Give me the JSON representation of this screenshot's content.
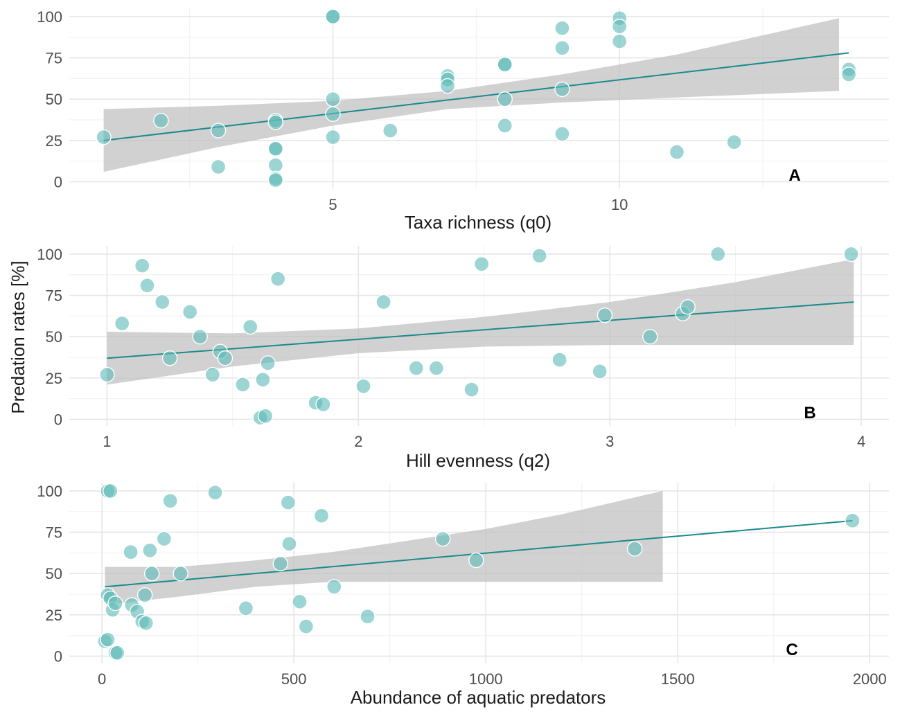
{
  "chart_data": [
    {
      "type": "scatter",
      "panel_label": "A",
      "xlabel": "Taxa richness (q0)",
      "ylabel": "Predation rates [%]",
      "xlim": [
        0.4,
        14.7
      ],
      "ylim": [
        -4,
        105
      ],
      "x_ticks": [
        5,
        10
      ],
      "y_ticks": [
        0,
        25,
        50,
        75,
        100
      ],
      "x_ticks_label": [
        "5",
        "10"
      ],
      "y_ticks_label": [
        "0",
        "25",
        "50",
        "75",
        "100"
      ],
      "colors": {
        "point": "#5fbcb8",
        "line": "#1a8a8a",
        "band": "#bdbdbd"
      },
      "points": [
        {
          "x": 1,
          "y": 27
        },
        {
          "x": 2,
          "y": 37
        },
        {
          "x": 3,
          "y": 31
        },
        {
          "x": 3,
          "y": 9
        },
        {
          "x": 4,
          "y": 37
        },
        {
          "x": 4,
          "y": 36
        },
        {
          "x": 4,
          "y": 20
        },
        {
          "x": 4,
          "y": 20
        },
        {
          "x": 4,
          "y": 10
        },
        {
          "x": 4,
          "y": 2
        },
        {
          "x": 4,
          "y": 1
        },
        {
          "x": 5,
          "y": 100
        },
        {
          "x": 5,
          "y": 100
        },
        {
          "x": 5,
          "y": 50
        },
        {
          "x": 5,
          "y": 41
        },
        {
          "x": 5,
          "y": 27
        },
        {
          "x": 6,
          "y": 31
        },
        {
          "x": 7,
          "y": 64
        },
        {
          "x": 7,
          "y": 62
        },
        {
          "x": 7,
          "y": 58
        },
        {
          "x": 8,
          "y": 71
        },
        {
          "x": 8,
          "y": 71
        },
        {
          "x": 8,
          "y": 50
        },
        {
          "x": 8,
          "y": 34
        },
        {
          "x": 9,
          "y": 93
        },
        {
          "x": 9,
          "y": 81
        },
        {
          "x": 9,
          "y": 56
        },
        {
          "x": 9,
          "y": 29
        },
        {
          "x": 10,
          "y": 99
        },
        {
          "x": 10,
          "y": 94
        },
        {
          "x": 10,
          "y": 85
        },
        {
          "x": 11,
          "y": 18
        },
        {
          "x": 12,
          "y": 24
        },
        {
          "x": 14,
          "y": 68
        },
        {
          "x": 14,
          "y": 65
        }
      ],
      "fit": {
        "x": [
          1,
          14
        ],
        "y": [
          25,
          78
        ]
      },
      "ci_band": {
        "x": [
          1,
          3,
          5,
          7,
          9,
          11,
          13.83
        ],
        "upper": [
          44,
          46,
          49,
          55,
          65,
          77,
          99
        ],
        "lower": [
          6,
          21,
          34,
          44,
          48,
          51,
          55
        ]
      }
    },
    {
      "type": "scatter",
      "panel_label": "B",
      "xlabel": "Hill evenness (q2)",
      "ylabel": "Predation rates [%]",
      "xlim": [
        0.85,
        4.11
      ],
      "ylim": [
        -4,
        105
      ],
      "x_ticks": [
        1,
        2,
        3,
        4
      ],
      "y_ticks": [
        0,
        25,
        50,
        75,
        100
      ],
      "x_ticks_label": [
        "1",
        "2",
        "3",
        "4"
      ],
      "y_ticks_label": [
        "0",
        "25",
        "50",
        "75",
        "100"
      ],
      "colors": {
        "point": "#5fbcb8",
        "line": "#1a8a8a",
        "band": "#bdbdbd"
      },
      "points": [
        {
          "x": 1.0,
          "y": 27
        },
        {
          "x": 1.06,
          "y": 58
        },
        {
          "x": 1.14,
          "y": 93
        },
        {
          "x": 1.16,
          "y": 81
        },
        {
          "x": 1.22,
          "y": 71
        },
        {
          "x": 1.25,
          "y": 37
        },
        {
          "x": 1.33,
          "y": 65
        },
        {
          "x": 1.37,
          "y": 50
        },
        {
          "x": 1.42,
          "y": 27
        },
        {
          "x": 1.45,
          "y": 41
        },
        {
          "x": 1.47,
          "y": 37
        },
        {
          "x": 1.54,
          "y": 21
        },
        {
          "x": 1.57,
          "y": 56
        },
        {
          "x": 1.61,
          "y": 1
        },
        {
          "x": 1.62,
          "y": 24
        },
        {
          "x": 1.63,
          "y": 2
        },
        {
          "x": 1.64,
          "y": 34
        },
        {
          "x": 1.68,
          "y": 85
        },
        {
          "x": 1.83,
          "y": 10
        },
        {
          "x": 1.86,
          "y": 9
        },
        {
          "x": 2.02,
          "y": 20
        },
        {
          "x": 2.1,
          "y": 71
        },
        {
          "x": 2.23,
          "y": 31
        },
        {
          "x": 2.31,
          "y": 31
        },
        {
          "x": 2.45,
          "y": 18
        },
        {
          "x": 2.49,
          "y": 94
        },
        {
          "x": 2.72,
          "y": 99
        },
        {
          "x": 2.8,
          "y": 36
        },
        {
          "x": 2.96,
          "y": 29
        },
        {
          "x": 2.98,
          "y": 63
        },
        {
          "x": 3.16,
          "y": 50
        },
        {
          "x": 3.29,
          "y": 64
        },
        {
          "x": 3.31,
          "y": 68
        },
        {
          "x": 3.43,
          "y": 100
        },
        {
          "x": 3.96,
          "y": 100
        }
      ],
      "fit": {
        "x": [
          1.0,
          3.97
        ],
        "y": [
          37,
          71
        ]
      },
      "ci_band": {
        "x": [
          1.0,
          1.5,
          2.0,
          2.5,
          3.0,
          3.5,
          3.97
        ],
        "upper": [
          53,
          52,
          55,
          62,
          71,
          83,
          97
        ],
        "lower": [
          21,
          32,
          40,
          44,
          45,
          45,
          45
        ]
      }
    },
    {
      "type": "scatter",
      "panel_label": "C",
      "xlabel": "Abundance of aquatic predators",
      "ylabel": "Predation rates [%]",
      "xlim": [
        -85,
        2050
      ],
      "ylim": [
        -4,
        105
      ],
      "x_ticks": [
        0,
        500,
        1000,
        1500,
        2000
      ],
      "y_ticks": [
        0,
        25,
        50,
        75,
        100
      ],
      "x_ticks_label": [
        "0",
        "500",
        "1000",
        "1500",
        "2000"
      ],
      "y_ticks_label": [
        "0",
        "25",
        "50",
        "75",
        "100"
      ],
      "colors": {
        "point": "#5fbcb8",
        "line": "#1a8a8a",
        "band": "#bdbdbd"
      },
      "points": [
        {
          "x": 15,
          "y": 100
        },
        {
          "x": 22,
          "y": 100
        },
        {
          "x": 8,
          "y": 9
        },
        {
          "x": 15,
          "y": 10
        },
        {
          "x": 15,
          "y": 37
        },
        {
          "x": 22,
          "y": 35
        },
        {
          "x": 28,
          "y": 28
        },
        {
          "x": 35,
          "y": 32
        },
        {
          "x": 35,
          "y": 2
        },
        {
          "x": 40,
          "y": 2
        },
        {
          "x": 75,
          "y": 63
        },
        {
          "x": 78,
          "y": 31
        },
        {
          "x": 92,
          "y": 27
        },
        {
          "x": 105,
          "y": 21
        },
        {
          "x": 112,
          "y": 37
        },
        {
          "x": 115,
          "y": 20
        },
        {
          "x": 125,
          "y": 64
        },
        {
          "x": 130,
          "y": 50
        },
        {
          "x": 162,
          "y": 71
        },
        {
          "x": 178,
          "y": 94
        },
        {
          "x": 205,
          "y": 50
        },
        {
          "x": 295,
          "y": 99
        },
        {
          "x": 375,
          "y": 29
        },
        {
          "x": 465,
          "y": 56
        },
        {
          "x": 485,
          "y": 93
        },
        {
          "x": 488,
          "y": 68
        },
        {
          "x": 515,
          "y": 33
        },
        {
          "x": 532,
          "y": 18
        },
        {
          "x": 572,
          "y": 85
        },
        {
          "x": 605,
          "y": 42
        },
        {
          "x": 692,
          "y": 24
        },
        {
          "x": 888,
          "y": 71
        },
        {
          "x": 975,
          "y": 58
        },
        {
          "x": 1388,
          "y": 65
        },
        {
          "x": 1955,
          "y": 82
        }
      ],
      "fit": {
        "x": [
          8,
          1955
        ],
        "y": [
          42,
          82
        ]
      },
      "ci_band": {
        "x": [
          8,
          200,
          400,
          600,
          800,
          1000,
          1200,
          1461
        ],
        "upper": [
          54,
          54,
          58,
          63,
          70,
          77,
          86,
          100
        ],
        "lower": [
          31,
          36,
          42,
          45,
          45,
          45,
          45,
          45
        ]
      }
    }
  ]
}
